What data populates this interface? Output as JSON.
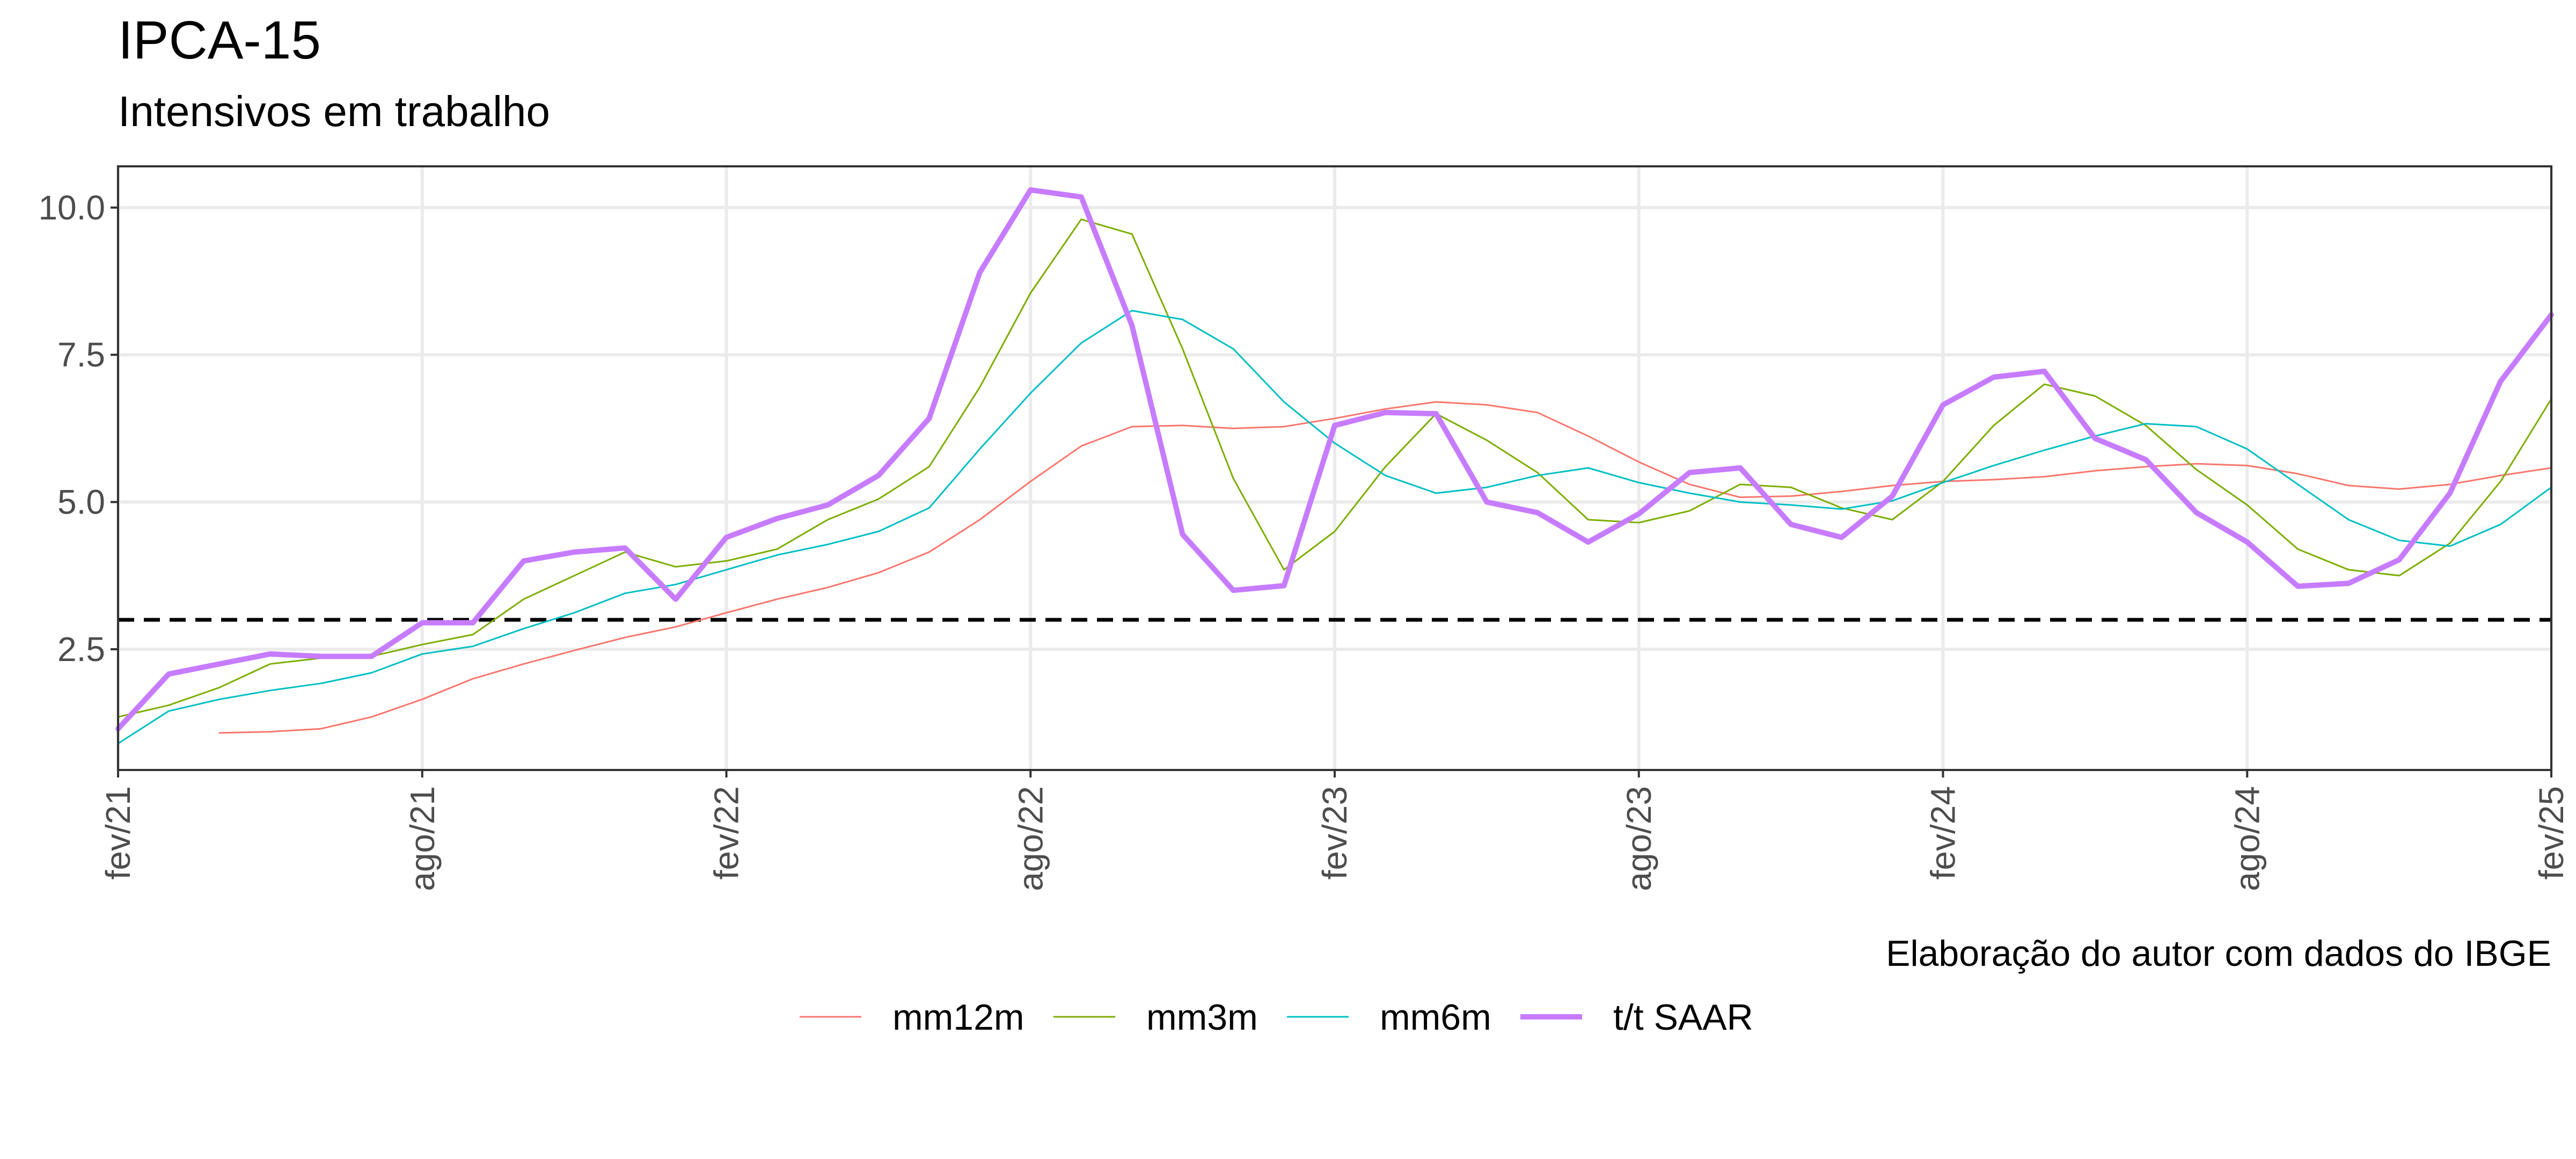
{
  "chart_data": {
    "type": "line",
    "title": "IPCA-15",
    "subtitle": "Intensivos em trabalho",
    "caption": "Elaboração do autor com dados do IBGE",
    "xlabel": "",
    "ylabel": "",
    "ylim": [
      0.45,
      10.7
    ],
    "yticks": [
      2.5,
      5.0,
      7.5,
      10.0
    ],
    "ytick_labels": [
      "2.5",
      "5.0",
      "7.5",
      "10.0"
    ],
    "x": [
      "fev/21",
      "mar/21",
      "abr/21",
      "mai/21",
      "jun/21",
      "jul/21",
      "ago/21",
      "set/21",
      "out/21",
      "nov/21",
      "dez/21",
      "jan/22",
      "fev/22",
      "mar/22",
      "abr/22",
      "mai/22",
      "jun/22",
      "jul/22",
      "ago/22",
      "set/22",
      "out/22",
      "nov/22",
      "dez/22",
      "jan/23",
      "fev/23",
      "mar/23",
      "abr/23",
      "mai/23",
      "jun/23",
      "jul/23",
      "ago/23",
      "set/23",
      "out/23",
      "nov/23",
      "dez/23",
      "jan/24",
      "fev/24",
      "mar/24",
      "abr/24",
      "mai/24",
      "jun/24",
      "jul/24",
      "ago/24",
      "set/24",
      "out/24",
      "nov/24",
      "dez/24",
      "jan/25",
      "fev/25"
    ],
    "xticks": [
      "fev/21",
      "ago/21",
      "fev/22",
      "ago/22",
      "fev/23",
      "ago/23",
      "fev/24",
      "ago/24",
      "fev/25"
    ],
    "reference_line": {
      "y": 3.0,
      "style": "dashed",
      "color": "#000000"
    },
    "grid": true,
    "legend_position": "bottom",
    "series": [
      {
        "name": "mm12m",
        "color": "#F8766D",
        "width": 3,
        "values": [
          null,
          null,
          1.08,
          1.1,
          1.15,
          1.35,
          1.65,
          2.0,
          2.25,
          2.48,
          2.7,
          2.88,
          3.12,
          3.35,
          3.55,
          3.8,
          4.15,
          4.7,
          5.35,
          5.95,
          6.28,
          6.3,
          6.25,
          6.28,
          6.42,
          6.58,
          6.7,
          6.65,
          6.52,
          6.12,
          5.68,
          5.3,
          5.08,
          5.1,
          5.18,
          5.28,
          5.35,
          5.38,
          5.43,
          5.53,
          5.6,
          5.65,
          5.62,
          5.48,
          5.28,
          5.22,
          5.3,
          5.45,
          5.58
        ]
      },
      {
        "name": "mm3m",
        "color": "#7CAE00",
        "width": 3,
        "values": [
          1.35,
          1.55,
          1.85,
          2.25,
          2.35,
          2.38,
          2.58,
          2.75,
          3.35,
          3.75,
          4.15,
          3.9,
          4.0,
          4.2,
          4.7,
          5.05,
          5.6,
          6.95,
          8.55,
          9.8,
          9.55,
          7.6,
          5.4,
          3.85,
          4.5,
          5.6,
          6.5,
          6.05,
          5.5,
          4.7,
          4.65,
          4.85,
          5.3,
          5.25,
          4.9,
          4.7,
          5.35,
          6.3,
          7.0,
          6.8,
          6.3,
          5.55,
          4.95,
          4.2,
          3.85,
          3.75,
          4.3,
          5.35,
          6.75
        ]
      },
      {
        "name": "mm6m",
        "color": "#00BFC4",
        "width": 3,
        "values": [
          0.9,
          1.45,
          1.65,
          1.8,
          1.92,
          2.1,
          2.42,
          2.55,
          2.85,
          3.12,
          3.45,
          3.6,
          3.85,
          4.1,
          4.28,
          4.5,
          4.9,
          5.9,
          6.85,
          7.7,
          8.25,
          8.1,
          7.6,
          6.7,
          6.0,
          5.45,
          5.15,
          5.25,
          5.45,
          5.58,
          5.33,
          5.15,
          5.0,
          4.95,
          4.88,
          5.02,
          5.33,
          5.62,
          5.88,
          6.12,
          6.33,
          6.28,
          5.9,
          5.3,
          4.7,
          4.35,
          4.25,
          4.62,
          5.25
        ]
      },
      {
        "name": "t/t SAAR",
        "color": "#C77CFF",
        "width": 10,
        "values": [
          1.15,
          2.08,
          2.25,
          2.42,
          2.38,
          2.38,
          2.95,
          2.95,
          4.0,
          4.15,
          4.22,
          3.35,
          4.4,
          4.72,
          4.95,
          5.45,
          6.42,
          8.9,
          10.3,
          10.18,
          8.0,
          4.45,
          3.5,
          3.58,
          6.3,
          6.52,
          6.5,
          5.0,
          4.82,
          4.32,
          4.8,
          5.5,
          5.58,
          4.62,
          4.4,
          5.1,
          6.65,
          7.12,
          7.22,
          6.08,
          5.72,
          4.82,
          4.32,
          3.57,
          3.62,
          4.02,
          5.15,
          7.05,
          8.18
        ]
      }
    ]
  }
}
